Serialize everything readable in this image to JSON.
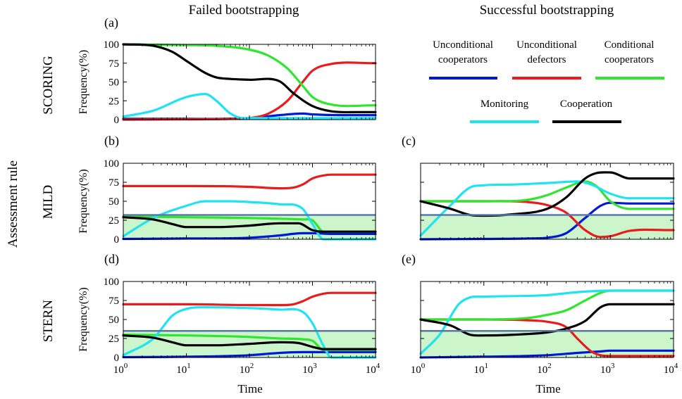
{
  "figure": {
    "column_titles": [
      "Failed bootstrapping",
      "Successful bootstrapping"
    ],
    "row_axis_label": "Assessment rule",
    "x_label": "Time",
    "x_ticks": [
      {
        "base": "10",
        "exp": "0"
      },
      {
        "base": "10",
        "exp": "1"
      },
      {
        "base": "10",
        "exp": "2"
      },
      {
        "base": "10",
        "exp": "3"
      },
      {
        "base": "10",
        "exp": "4"
      }
    ],
    "y_label": "Frequency(%)",
    "y_ticks": [
      "100",
      "75",
      "50",
      "25",
      "0"
    ],
    "row_labels": [
      "SCORING",
      "MILD",
      "STERN"
    ],
    "legend": [
      {
        "line1": "Unconditional",
        "line2": "cooperators",
        "color": "#0019d6"
      },
      {
        "line1": "Unconditional",
        "line2": "defectors",
        "color": "#e81c1c"
      },
      {
        "line1": "Conditional",
        "line2": "cooperators",
        "color": "#2ee62e"
      },
      {
        "line1": "Monitoring",
        "line2": "",
        "color": "#1fe3f2"
      },
      {
        "line1": "Cooperation",
        "line2": "",
        "color": "#000000"
      }
    ],
    "colors": {
      "cooperators": "#0019d6",
      "defectors": "#e81c1c",
      "conditional": "#2ee62e",
      "monitoring": "#1fe3f2",
      "cooperation": "#000000",
      "threshold_line": "#5878a8",
      "shade": "#ccf5cc"
    }
  },
  "chart_data": [
    {
      "panel": "(a)",
      "type": "line",
      "x_scale": "log",
      "xlim": [
        1,
        10000
      ],
      "ylim": [
        0,
        100
      ],
      "threshold": null,
      "series": [
        {
          "name": "Unconditional cooperators",
          "x": [
            1,
            10,
            100,
            300,
            700,
            1000,
            3000,
            10000
          ],
          "y": [
            1,
            1,
            2,
            6,
            8,
            7,
            6,
            6
          ]
        },
        {
          "name": "Unconditional defectors",
          "x": [
            1,
            10,
            50,
            100,
            200,
            400,
            700,
            1000,
            2000,
            10000
          ],
          "y": [
            0,
            0.5,
            1,
            2,
            8,
            25,
            50,
            65,
            74,
            75
          ]
        },
        {
          "name": "Conditional cooperators",
          "x": [
            1,
            10,
            30,
            100,
            200,
            400,
            700,
            1000,
            2000,
            10000
          ],
          "y": [
            100,
            99,
            98,
            93,
            85,
            68,
            45,
            30,
            20,
            19
          ]
        },
        {
          "name": "Monitoring",
          "x": [
            1,
            3,
            10,
            20,
            30,
            50,
            80,
            100,
            300,
            1000,
            10000
          ],
          "y": [
            4,
            12,
            30,
            34,
            25,
            8,
            2,
            2,
            2,
            2,
            2
          ]
        },
        {
          "name": "Cooperation",
          "x": [
            1,
            3,
            6,
            10,
            20,
            30,
            50,
            100,
            300,
            500,
            1000,
            2000,
            5000,
            10000
          ],
          "y": [
            100,
            98,
            90,
            78,
            62,
            56,
            54,
            53,
            51,
            35,
            18,
            11,
            10,
            10
          ]
        }
      ]
    },
    {
      "panel": "(b)",
      "type": "line",
      "x_scale": "log",
      "xlim": [
        1,
        10000
      ],
      "ylim": [
        0,
        100
      ],
      "threshold": 32,
      "series": [
        {
          "name": "Unconditional cooperators",
          "x": [
            1,
            10,
            100,
            300,
            700,
            1000,
            2000,
            10000
          ],
          "y": [
            0.5,
            1,
            2,
            5,
            8,
            8,
            7,
            7
          ]
        },
        {
          "name": "Unconditional defectors",
          "x": [
            1,
            10,
            100,
            300,
            500,
            700,
            1000,
            1500,
            2000,
            10000
          ],
          "y": [
            70,
            70,
            69,
            67,
            68,
            72,
            80,
            84,
            85,
            85
          ]
        },
        {
          "name": "Conditional cooperators",
          "x": [
            1,
            10,
            100,
            300,
            700,
            1000,
            1500,
            10000
          ],
          "y": [
            30,
            29,
            28,
            27,
            26,
            25,
            10,
            10
          ]
        },
        {
          "name": "Monitoring",
          "x": [
            1,
            3,
            10,
            20,
            50,
            100,
            300,
            700,
            1000,
            1500,
            10000
          ],
          "y": [
            4,
            28,
            44,
            50,
            50,
            49,
            46,
            40,
            20,
            0,
            0
          ]
        },
        {
          "name": "Cooperation",
          "x": [
            1,
            3,
            6,
            10,
            30,
            100,
            300,
            600,
            1000,
            1500,
            10000
          ],
          "y": [
            29,
            26,
            20,
            16,
            16,
            18,
            21,
            21,
            12,
            10,
            10
          ]
        }
      ]
    },
    {
      "panel": "(c)",
      "type": "line",
      "x_scale": "log",
      "xlim": [
        1,
        10000
      ],
      "ylim": [
        0,
        100
      ],
      "threshold": 32,
      "series": [
        {
          "name": "Unconditional cooperators",
          "x": [
            1,
            10,
            50,
            100,
            200,
            400,
            700,
            1000,
            2000,
            10000
          ],
          "y": [
            0,
            0.5,
            1,
            2,
            8,
            28,
            44,
            48,
            47,
            47
          ]
        },
        {
          "name": "Unconditional defectors",
          "x": [
            1,
            10,
            50,
            100,
            200,
            400,
            700,
            1000,
            2000,
            10000
          ],
          "y": [
            50,
            50,
            49,
            45,
            35,
            12,
            3,
            4,
            11,
            12
          ]
        },
        {
          "name": "Conditional cooperators",
          "x": [
            1,
            10,
            50,
            100,
            200,
            400,
            600,
            1000,
            2000,
            10000
          ],
          "y": [
            50,
            50,
            52,
            58,
            68,
            76,
            70,
            50,
            40,
            40
          ]
        },
        {
          "name": "Monitoring",
          "x": [
            1,
            3,
            6,
            10,
            30,
            100,
            300,
            500,
            1000,
            2000,
            10000
          ],
          "y": [
            5,
            45,
            68,
            71,
            72,
            74,
            76,
            72,
            60,
            54,
            54
          ]
        },
        {
          "name": "Cooperation",
          "x": [
            1,
            3,
            6,
            10,
            30,
            100,
            200,
            400,
            600,
            1000,
            2000,
            10000
          ],
          "y": [
            50,
            40,
            32,
            31,
            33,
            40,
            55,
            80,
            87,
            88,
            80,
            80
          ]
        }
      ]
    },
    {
      "panel": "(d)",
      "type": "line",
      "x_scale": "log",
      "xlim": [
        1,
        10000
      ],
      "ylim": [
        0,
        100
      ],
      "threshold": 35,
      "series": [
        {
          "name": "Unconditional cooperators",
          "x": [
            1,
            10,
            100,
            300,
            700,
            1000,
            2000,
            10000
          ],
          "y": [
            0.5,
            1,
            3,
            6,
            7,
            7,
            7,
            7
          ]
        },
        {
          "name": "Unconditional defectors",
          "x": [
            1,
            10,
            100,
            300,
            500,
            700,
            1000,
            1500,
            2000,
            10000
          ],
          "y": [
            70,
            70,
            69,
            69,
            70,
            74,
            80,
            84,
            85,
            85
          ]
        },
        {
          "name": "Conditional cooperators",
          "x": [
            1,
            10,
            100,
            300,
            700,
            1000,
            1500,
            10000
          ],
          "y": [
            30,
            29,
            27,
            25,
            24,
            22,
            10,
            10
          ]
        },
        {
          "name": "Monitoring",
          "x": [
            1,
            3,
            6,
            10,
            20,
            100,
            300,
            700,
            1000,
            1500,
            2000,
            10000
          ],
          "y": [
            3,
            25,
            55,
            64,
            66,
            65,
            63,
            60,
            45,
            15,
            0,
            0
          ]
        },
        {
          "name": "Cooperation",
          "x": [
            1,
            3,
            6,
            10,
            30,
            100,
            300,
            600,
            1000,
            1500,
            10000
          ],
          "y": [
            29,
            26,
            20,
            16,
            16,
            18,
            20,
            19,
            14,
            11,
            11
          ]
        }
      ]
    },
    {
      "panel": "(e)",
      "type": "line",
      "x_scale": "log",
      "xlim": [
        1,
        10000
      ],
      "ylim": [
        0,
        100
      ],
      "threshold": 35,
      "series": [
        {
          "name": "Unconditional cooperators",
          "x": [
            1,
            10,
            100,
            300,
            700,
            1000,
            2000,
            10000
          ],
          "y": [
            0,
            1,
            3,
            6,
            8,
            9,
            9,
            9
          ]
        },
        {
          "name": "Unconditional defectors",
          "x": [
            1,
            10,
            50,
            100,
            200,
            300,
            500,
            700,
            1000,
            10000
          ],
          "y": [
            50,
            50,
            49,
            47,
            40,
            25,
            8,
            3,
            2,
            2
          ]
        },
        {
          "name": "Conditional cooperators",
          "x": [
            1,
            10,
            50,
            100,
            200,
            400,
            700,
            1000,
            10000
          ],
          "y": [
            50,
            50,
            52,
            56,
            62,
            75,
            85,
            88,
            88
          ]
        },
        {
          "name": "Monitoring",
          "x": [
            1,
            2,
            4,
            6,
            10,
            100,
            300,
            1000,
            10000
          ],
          "y": [
            5,
            30,
            70,
            79,
            80,
            82,
            86,
            88,
            88
          ]
        },
        {
          "name": "Cooperation",
          "x": [
            1,
            3,
            6,
            10,
            30,
            100,
            200,
            400,
            700,
            1000,
            2000,
            10000
          ],
          "y": [
            50,
            42,
            30,
            29,
            30,
            33,
            38,
            48,
            66,
            70,
            70,
            70
          ]
        }
      ]
    }
  ]
}
